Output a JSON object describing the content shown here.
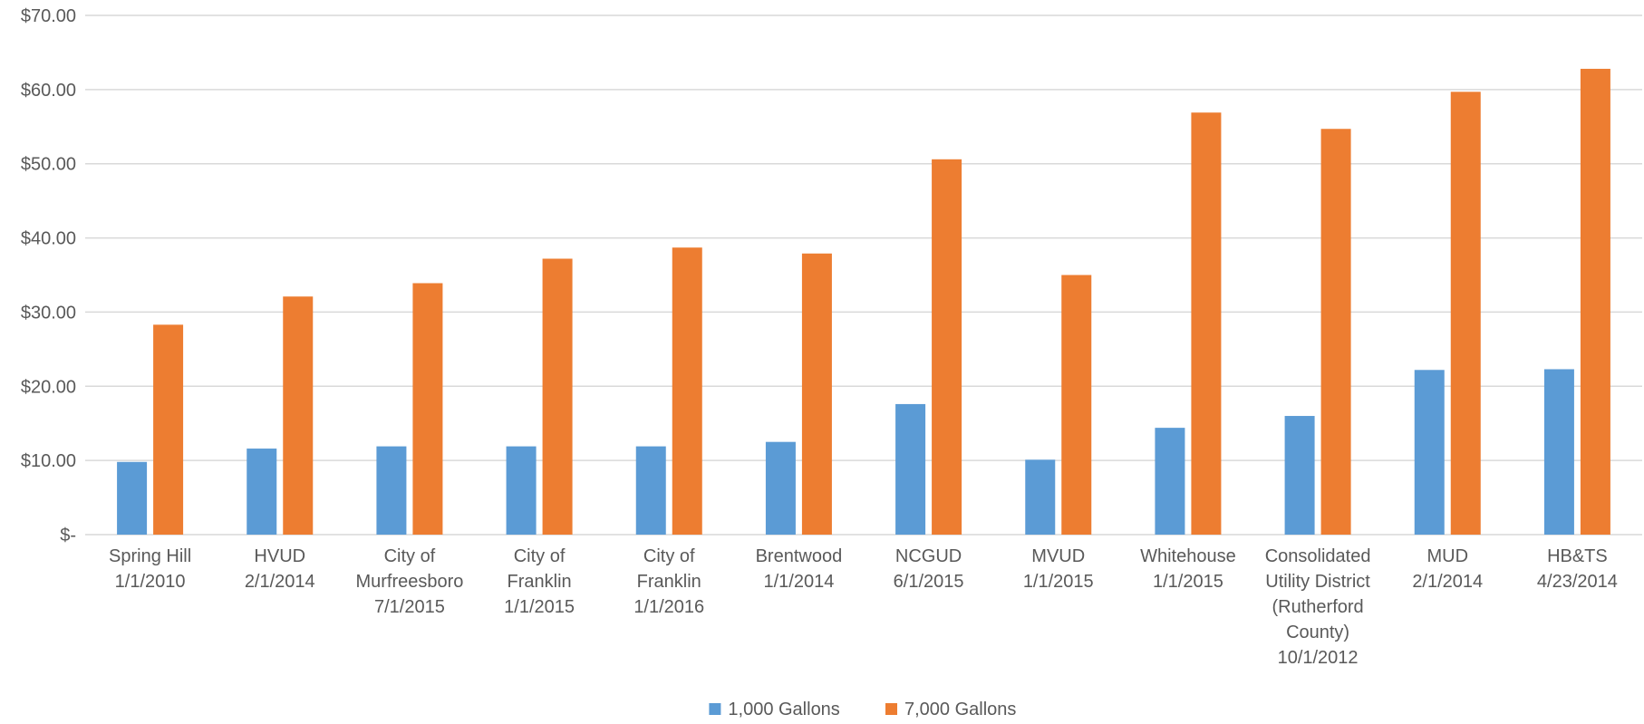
{
  "chart_data": {
    "type": "bar",
    "title": "",
    "xlabel": "",
    "ylabel": "",
    "ylim": [
      0,
      70
    ],
    "y_ticks": [
      0,
      10,
      20,
      30,
      40,
      50,
      60,
      70
    ],
    "y_tick_labels": [
      "$-",
      "$10.00",
      "$20.00",
      "$30.00",
      "$40.00",
      "$50.00",
      "$60.00",
      "$70.00"
    ],
    "grid": true,
    "legend_position": "bottom",
    "categories": [
      [
        "Spring Hill",
        "1/1/2010"
      ],
      [
        "HVUD",
        "2/1/2014"
      ],
      [
        "City of",
        "Murfreesboro",
        "7/1/2015"
      ],
      [
        "City of",
        "Franklin",
        "1/1/2015"
      ],
      [
        "City of",
        "Franklin",
        "1/1/2016"
      ],
      [
        "Brentwood",
        "1/1/2014"
      ],
      [
        "NCGUD",
        "6/1/2015"
      ],
      [
        "MVUD",
        "1/1/2015"
      ],
      [
        "Whitehouse",
        "1/1/2015"
      ],
      [
        "Consolidated",
        "Utility District",
        "(Rutherford",
        "County)",
        "10/1/2012"
      ],
      [
        "MUD",
        "2/1/2014"
      ],
      [
        "HB&TS",
        "4/23/2014"
      ]
    ],
    "series": [
      {
        "name": "1,000 Gallons",
        "color": "#5b9bd5",
        "values": [
          9.8,
          11.6,
          11.9,
          11.9,
          11.9,
          12.5,
          17.6,
          10.1,
          14.4,
          16.0,
          22.2,
          22.3
        ]
      },
      {
        "name": "7,000 Gallons",
        "color": "#ed7d31",
        "values": [
          28.3,
          32.1,
          33.9,
          37.2,
          38.7,
          37.9,
          50.6,
          35.0,
          56.9,
          54.7,
          59.7,
          62.8
        ]
      }
    ]
  }
}
